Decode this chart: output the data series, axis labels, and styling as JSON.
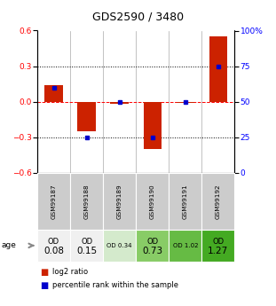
{
  "title": "GDS2590 / 3480",
  "samples": [
    "GSM99187",
    "GSM99188",
    "GSM99189",
    "GSM99190",
    "GSM99191",
    "GSM99192"
  ],
  "log2_ratios": [
    0.14,
    -0.25,
    -0.02,
    -0.4,
    -0.01,
    0.55
  ],
  "percentile_ranks": [
    0.6,
    0.25,
    0.5,
    0.25,
    0.5,
    0.75
  ],
  "od_labels_line1": [
    "OD",
    "OD",
    "OD 0.34",
    "OD",
    "OD 1.02",
    "OD"
  ],
  "od_labels_line2": [
    "0.08",
    "0.15",
    "",
    "0.73",
    "",
    "1.27"
  ],
  "ylim": [
    -0.6,
    0.6
  ],
  "yticks_left": [
    -0.6,
    -0.3,
    0.0,
    0.3,
    0.6
  ],
  "yticks_right": [
    0,
    25,
    50,
    75,
    100
  ],
  "bar_color": "#cc2200",
  "dot_color": "#0000cc",
  "title_fontsize": 9,
  "background_color": "#ffffff",
  "cell_colors_gsm": [
    "#cccccc",
    "#cccccc",
    "#cccccc",
    "#cccccc",
    "#cccccc",
    "#cccccc"
  ],
  "cell_colors_od": [
    "#f0f0f0",
    "#f0f0f0",
    "#d4eacc",
    "#88cc66",
    "#66bb44",
    "#44aa22"
  ],
  "bar_width": 0.55
}
